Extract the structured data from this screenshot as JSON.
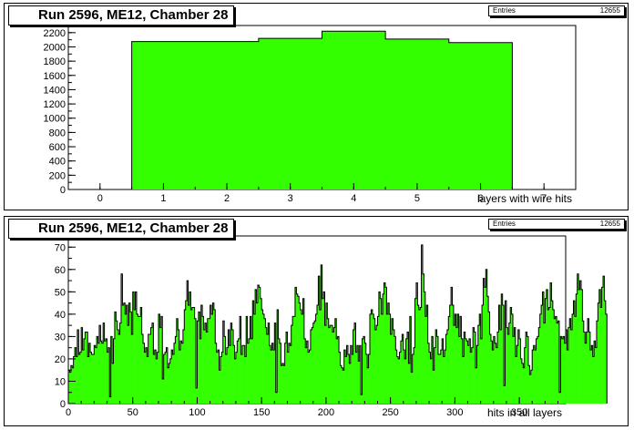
{
  "chart_data": [
    {
      "type": "bar",
      "title": "Run 2596, ME12, Chamber 28",
      "xlabel": "layers with wire hits",
      "ylabel": "",
      "stats": {
        "label": "Entries",
        "value": "12655"
      },
      "xlim": [
        -0.5,
        7.5
      ],
      "ylim": [
        0,
        2300
      ],
      "xticks": [
        0,
        1,
        2,
        3,
        4,
        5,
        6,
        7
      ],
      "yticks": [
        0,
        200,
        400,
        600,
        800,
        1000,
        1200,
        1400,
        1600,
        1800,
        2000,
        2200
      ],
      "categories": [
        1,
        2,
        3,
        4,
        5,
        6
      ],
      "values": [
        2075,
        2075,
        2120,
        2220,
        2110,
        2060
      ],
      "fill_color": "#33ff00",
      "line_color": "#000000"
    },
    {
      "type": "bar",
      "title": "Run 2596, ME12, Chamber 28",
      "xlabel": "hits in all layers",
      "ylabel": "",
      "stats": {
        "label": "Entries",
        "value": "12655"
      },
      "xlim": [
        0,
        386
      ],
      "ylim": [
        0,
        75
      ],
      "xticks": [
        0,
        50,
        100,
        150,
        200,
        250,
        300,
        350
      ],
      "yticks": [
        0,
        10,
        20,
        30,
        40,
        50,
        60,
        70
      ],
      "bin_width": 1,
      "values": [
        15,
        14,
        17,
        16,
        21,
        25,
        21,
        33,
        22,
        23,
        34,
        24,
        29,
        32,
        32,
        21,
        27,
        23,
        22,
        22,
        26,
        25,
        30,
        27,
        35,
        28,
        27,
        36,
        28,
        29,
        23,
        25,
        3,
        30,
        18,
        29,
        41,
        37,
        33,
        31,
        36,
        58,
        44,
        45,
        40,
        44,
        35,
        45,
        41,
        31,
        50,
        42,
        50,
        40,
        39,
        39,
        43,
        31,
        27,
        23,
        25,
        21,
        31,
        31,
        34,
        36,
        22,
        24,
        20,
        23,
        40,
        34,
        39,
        11,
        22,
        23,
        25,
        16,
        18,
        20,
        24,
        22,
        27,
        30,
        38,
        33,
        24,
        28,
        27,
        33,
        42,
        46,
        55,
        44,
        50,
        42,
        43,
        43,
        38,
        7,
        37,
        41,
        29,
        44,
        39,
        33,
        36,
        32,
        38,
        38,
        44,
        40,
        45,
        42,
        27,
        23,
        24,
        15,
        21,
        23,
        37,
        30,
        22,
        25,
        33,
        26,
        36,
        33,
        26,
        20,
        23,
        28,
        29,
        39,
        22,
        26,
        26,
        21,
        39,
        27,
        29,
        39,
        29,
        46,
        40,
        51,
        45,
        53,
        52,
        47,
        42,
        40,
        38,
        34,
        31,
        36,
        26,
        24,
        27,
        24,
        36,
        5,
        42,
        29,
        27,
        17,
        18,
        17,
        27,
        32,
        23,
        27,
        26,
        35,
        39,
        39,
        52,
        49,
        48,
        45,
        42,
        40,
        47,
        29,
        25,
        28,
        23,
        24,
        33,
        34,
        36,
        37,
        40,
        44,
        57,
        42,
        62,
        47,
        50,
        35,
        45,
        38,
        34,
        35,
        35,
        32,
        34,
        38,
        29,
        30,
        23,
        17,
        16,
        15,
        24,
        21,
        26,
        22,
        18,
        26,
        22,
        33,
        36,
        23,
        26,
        19,
        26,
        4,
        29,
        30,
        27,
        22,
        16,
        22,
        40,
        42,
        40,
        38,
        33,
        35,
        39,
        50,
        47,
        40,
        49,
        54,
        52,
        40,
        45,
        40,
        31,
        38,
        33,
        30,
        24,
        21,
        20,
        23,
        28,
        31,
        24,
        20,
        29,
        32,
        18,
        39,
        14,
        22,
        25,
        47,
        54,
        44,
        42,
        43,
        71,
        58,
        50,
        39,
        44,
        27,
        23,
        20,
        30,
        15,
        25,
        33,
        30,
        22,
        22,
        24,
        29,
        21,
        24,
        31,
        33,
        39,
        44,
        52,
        44,
        35,
        40,
        34,
        40,
        30,
        39,
        29,
        21,
        32,
        29,
        28,
        26,
        29,
        23,
        25,
        34,
        32,
        16,
        26,
        35,
        40,
        29,
        44,
        56,
        52,
        60,
        48,
        41,
        31,
        28,
        24,
        30,
        27,
        25,
        32,
        44,
        33,
        49,
        44,
        8,
        46,
        34,
        31,
        36,
        43,
        40,
        30,
        34,
        21,
        26,
        33,
        29,
        20,
        18,
        16,
        25,
        32,
        30,
        17,
        13,
        15,
        24,
        26,
        24,
        29,
        30,
        34,
        40,
        44,
        50,
        36,
        47,
        51,
        42,
        43,
        54,
        46,
        42,
        38,
        39,
        36,
        37,
        5,
        30,
        29,
        30,
        27,
        33,
        24,
        34,
        38,
        33,
        40,
        46,
        39,
        49,
        58,
        51,
        55,
        51,
        37,
        32,
        27,
        32,
        38,
        32,
        24,
        26,
        21,
        28,
        25,
        37,
        45,
        51,
        43,
        52,
        57,
        46,
        40
      ],
      "fill_color": "#33ff00",
      "line_color": "#000000"
    }
  ]
}
